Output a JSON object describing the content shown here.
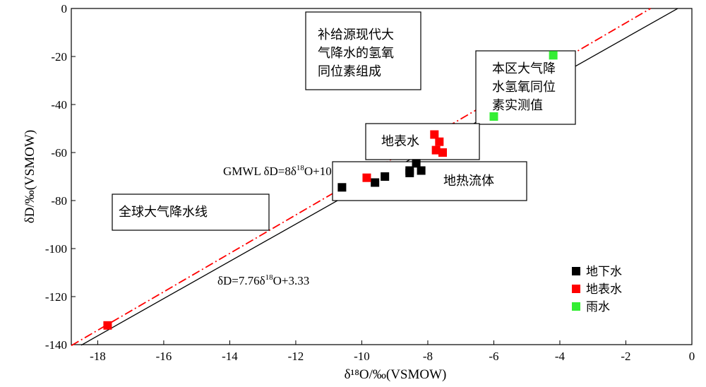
{
  "chart_data": {
    "type": "scatter",
    "title": "",
    "xlabel": "δ¹⁸O/‰(VSMOW)",
    "ylabel": "δD/‰(VSMOW)",
    "xlim": [
      -18.8,
      0
    ],
    "ylim": [
      -140,
      0
    ],
    "xticks": [
      -18,
      -16,
      -14,
      -12,
      -10,
      -8,
      -6,
      -4,
      -2,
      0
    ],
    "yticks": [
      -140,
      -120,
      -100,
      -80,
      -60,
      -40,
      -20,
      0
    ],
    "grid": false,
    "legend_position": "bottom-right",
    "series": [
      {
        "name": "地下水",
        "color": "#000000",
        "points": [
          [
            -10.6,
            -74.5
          ],
          [
            -9.6,
            -72.5
          ],
          [
            -9.3,
            -70
          ],
          [
            -8.55,
            -67.5
          ],
          [
            -8.55,
            -68.5
          ],
          [
            -8.35,
            -64.5
          ],
          [
            -8.2,
            -67.5
          ]
        ]
      },
      {
        "name": "地表水",
        "color": "#ff0000",
        "points": [
          [
            -17.7,
            -132
          ],
          [
            -9.85,
            -70.5
          ],
          [
            -7.8,
            -52.5
          ],
          [
            -7.65,
            -55.5
          ],
          [
            -7.75,
            -59
          ],
          [
            -7.55,
            -60
          ]
        ]
      },
      {
        "name": "雨水",
        "color": "#33ee33",
        "points": [
          [
            -4.2,
            -19.5
          ],
          [
            -6.0,
            -45
          ]
        ]
      }
    ],
    "lines": [
      {
        "name": "GMWL",
        "slope": 8,
        "intercept": 10,
        "color": "#ff0000",
        "style": "dash-dot",
        "x_range": [
          -18.8,
          -1.25
        ]
      },
      {
        "name": "local",
        "slope": 7.76,
        "intercept": 3.33,
        "color": "#000000",
        "style": "solid",
        "x_range": [
          -18.5,
          -0.43
        ]
      }
    ],
    "annotations": {
      "gmwl_label_prefix": "GMWL  δD=8δ",
      "gmwl_label_sup": "18",
      "gmwl_label_suffix": "O+10",
      "local_label_prefix": "δD=7.76δ",
      "local_label_sup": "18",
      "local_label_suffix": "O+3.33",
      "box_recharge_lines": [
        "补给源现代大",
        "气降水的氢氧",
        "同位素组成"
      ],
      "box_rain_lines": [
        "本区大气降",
        "水氢氧同位",
        "素实测值"
      ],
      "box_surface": "地表水",
      "box_geothermal": "地热流体",
      "box_global": "全球大气降水线"
    }
  }
}
